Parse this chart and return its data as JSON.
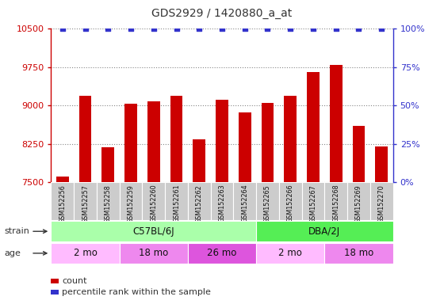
{
  "title": "GDS2929 / 1420880_a_at",
  "samples": [
    "GSM152256",
    "GSM152257",
    "GSM152258",
    "GSM152259",
    "GSM152260",
    "GSM152261",
    "GSM152262",
    "GSM152263",
    "GSM152264",
    "GSM152265",
    "GSM152266",
    "GSM152267",
    "GSM152268",
    "GSM152269",
    "GSM152270"
  ],
  "counts": [
    7620,
    9200,
    8180,
    9040,
    9080,
    9200,
    8340,
    9120,
    8870,
    9060,
    9200,
    9660,
    9800,
    8600,
    8200
  ],
  "percentile_values": [
    100,
    100,
    100,
    100,
    100,
    100,
    100,
    100,
    100,
    100,
    100,
    100,
    100,
    100,
    100
  ],
  "bar_color": "#cc0000",
  "dot_color": "#3333cc",
  "ylim_left": [
    7500,
    10500
  ],
  "ylim_right": [
    0,
    100
  ],
  "yticks_left": [
    7500,
    8250,
    9000,
    9750,
    10500
  ],
  "yticks_right": [
    0,
    25,
    50,
    75,
    100
  ],
  "strain_groups": [
    {
      "label": "C57BL/6J",
      "start": 0,
      "end": 9,
      "color": "#aaffaa"
    },
    {
      "label": "DBA/2J",
      "start": 9,
      "end": 15,
      "color": "#55ee55"
    }
  ],
  "age_groups": [
    {
      "label": "2 mo",
      "start": 0,
      "end": 3,
      "color": "#ffbbff"
    },
    {
      "label": "18 mo",
      "start": 3,
      "end": 6,
      "color": "#ee88ee"
    },
    {
      "label": "26 mo",
      "start": 6,
      "end": 9,
      "color": "#dd55dd"
    },
    {
      "label": "2 mo",
      "start": 9,
      "end": 12,
      "color": "#ffbbff"
    },
    {
      "label": "18 mo",
      "start": 12,
      "end": 15,
      "color": "#ee88ee"
    }
  ],
  "axis_label_color_left": "#cc0000",
  "axis_label_color_right": "#3333cc",
  "grid_color": "#888888",
  "sample_bg_color": "#cccccc",
  "sample_border_color": "#ffffff"
}
